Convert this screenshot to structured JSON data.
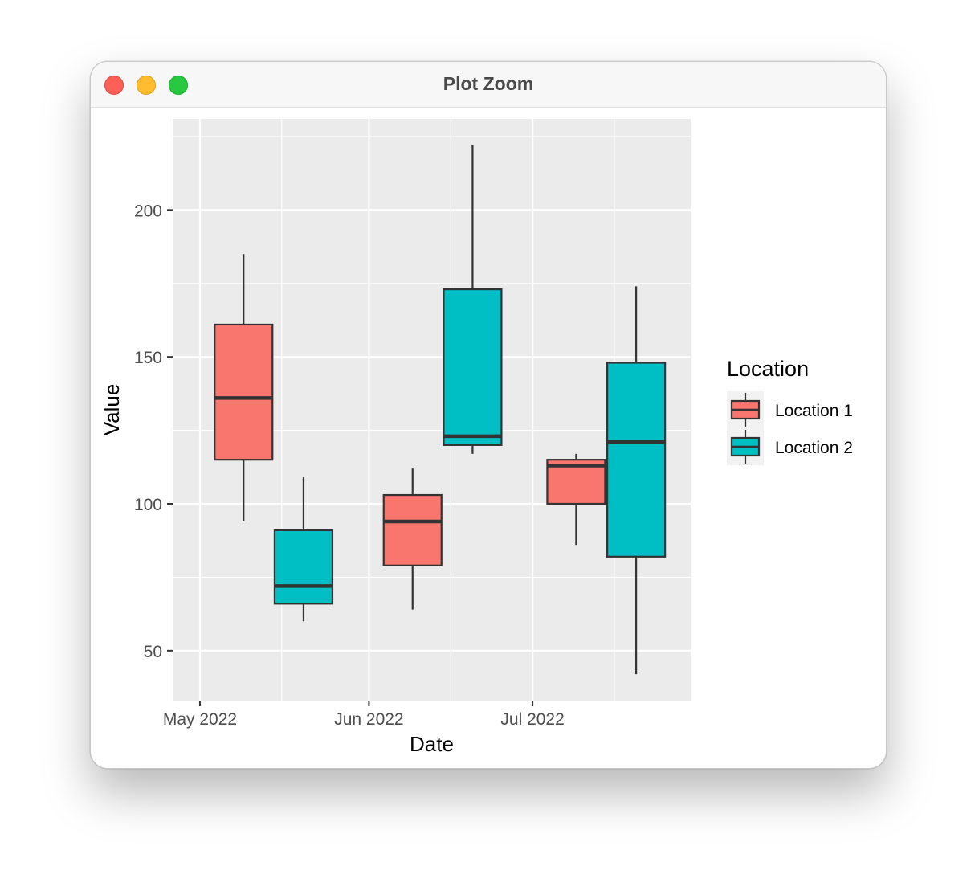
{
  "window": {
    "title": "Plot Zoom",
    "buttons": [
      "close",
      "minimize",
      "zoom"
    ]
  },
  "chart_data": {
    "type": "box",
    "xlabel": "Date",
    "ylabel": "Value",
    "ylim": [
      33,
      231
    ],
    "yticks": [
      50,
      100,
      150,
      200
    ],
    "xlim": [
      "2022-04-26",
      "2022-07-30"
    ],
    "x_major_ticks": [
      {
        "date": "2022-05-01",
        "label": "May 2022"
      },
      {
        "date": "2022-06-01",
        "label": "Jun 2022"
      },
      {
        "date": "2022-07-01",
        "label": "Jul 2022"
      }
    ],
    "x_minor_gridlines": [
      "2022-05-16",
      "2022-06-16",
      "2022-07-16"
    ],
    "grid": true,
    "legend": {
      "title": "Location",
      "placement": "right",
      "entries": [
        {
          "name": "Location 1",
          "color": "#F8766D"
        },
        {
          "name": "Location 2",
          "color": "#00BFC4"
        }
      ]
    },
    "series": [
      {
        "name": "Location 1",
        "color": "#F8766D",
        "boxes": [
          {
            "x": "2022-05-09",
            "min": 94,
            "q1": 115,
            "median": 136,
            "q3": 161,
            "max": 185
          },
          {
            "x": "2022-06-09",
            "min": 64,
            "q1": 79,
            "median": 94,
            "q3": 103,
            "max": 112
          },
          {
            "x": "2022-07-09",
            "min": 86,
            "q1": 100,
            "median": 113,
            "q3": 115,
            "max": 117
          }
        ]
      },
      {
        "name": "Location 2",
        "color": "#00BFC4",
        "boxes": [
          {
            "x": "2022-05-20",
            "min": 60,
            "q1": 66,
            "median": 72,
            "q3": 91,
            "max": 109
          },
          {
            "x": "2022-06-20",
            "min": 117,
            "q1": 120,
            "median": 123,
            "q3": 173,
            "max": 222
          },
          {
            "x": "2022-07-20",
            "min": 42,
            "q1": 82,
            "median": 121,
            "q3": 148,
            "max": 174
          }
        ]
      }
    ]
  }
}
